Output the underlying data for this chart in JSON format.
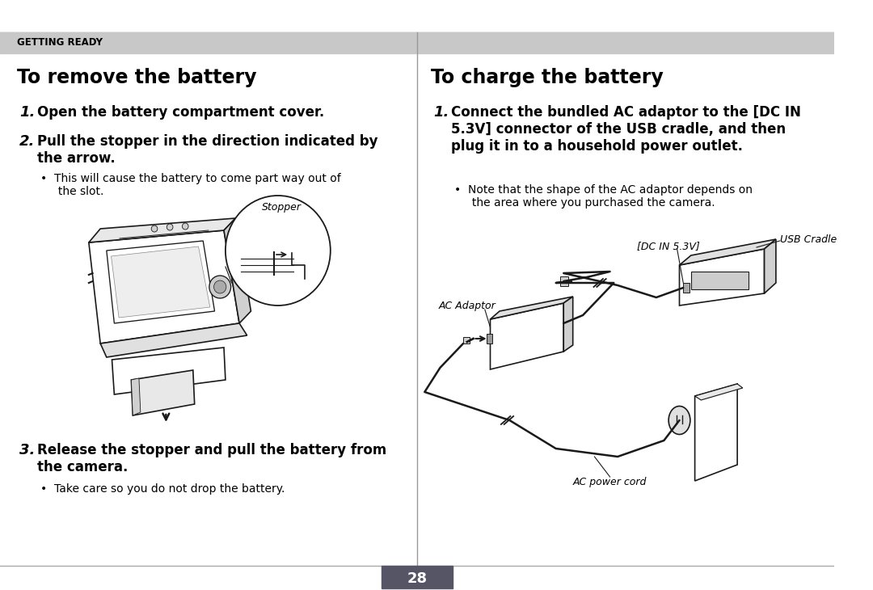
{
  "bg_color": "#ffffff",
  "header_bg": "#c8c8c8",
  "header_text": "GETTING READY",
  "header_text_color": "#000000",
  "left_title": "To remove the battery",
  "right_title": "To charge the battery",
  "label_stopper": "Stopper",
  "label_dc_in": "[DC IN 5.3V]",
  "label_usb_cradle": "USB Cradle",
  "label_ac_adaptor": "AC Adaptor",
  "label_ac_power_cord": "AC power cord",
  "divider_color": "#999999",
  "border_color": "#aaaaaa",
  "page_num": "28",
  "page_bg_num": "#555566",
  "line_color": "#1a1a1a",
  "line_lw": 1.2
}
